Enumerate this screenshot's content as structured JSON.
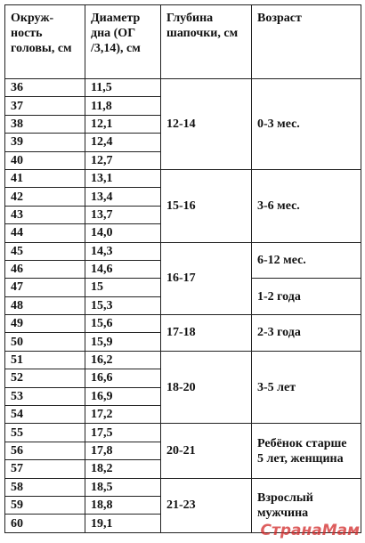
{
  "header": {
    "circumference": "Окруж-ность головы, см",
    "diameter": "Диаметр дна (ОГ /3,14), см",
    "depth": "Глубина шапочки, см",
    "age": "Возраст"
  },
  "groups": [
    {
      "depth": "12-14",
      "ages": [
        {
          "age": "0-3 мес.",
          "rows": [
            [
              "36",
              "11,5"
            ],
            [
              "37",
              "11,8"
            ],
            [
              "38",
              "12,1"
            ],
            [
              "39",
              "12,4"
            ],
            [
              "40",
              "12,7"
            ]
          ]
        }
      ]
    },
    {
      "depth": "15-16",
      "ages": [
        {
          "age": "3-6 мес.",
          "rows": [
            [
              "41",
              "13,1"
            ],
            [
              "42",
              "13,4"
            ],
            [
              "43",
              "13,7"
            ],
            [
              "44",
              "14,0"
            ]
          ]
        }
      ]
    },
    {
      "depth": "16-17",
      "ages": [
        {
          "age": "6-12 мес.",
          "rows": [
            [
              "45",
              "14,3"
            ],
            [
              "46",
              "14,6"
            ]
          ]
        },
        {
          "age": "1-2 года",
          "rows": [
            [
              "47",
              "15"
            ],
            [
              "48",
              "15,3"
            ]
          ]
        }
      ]
    },
    {
      "depth": "17-18",
      "ages": [
        {
          "age": "2-3 года",
          "rows": [
            [
              "49",
              "15,6"
            ],
            [
              "50",
              "15,9"
            ]
          ]
        }
      ]
    },
    {
      "depth": "18-20",
      "ages": [
        {
          "age": "3-5 лет",
          "rows": [
            [
              "51",
              "16,2"
            ],
            [
              "52",
              "16,6"
            ],
            [
              "53",
              "16,9"
            ],
            [
              "54",
              "17,2"
            ]
          ]
        }
      ]
    },
    {
      "depth": "20-21",
      "ages": [
        {
          "age": "Ребёнок старше 5 лет, женщина",
          "rows": [
            [
              "55",
              "17,5"
            ],
            [
              "56",
              "17,8"
            ],
            [
              "57",
              "18,2"
            ]
          ]
        }
      ]
    },
    {
      "depth": "21-23",
      "ages": [
        {
          "age": "Взрослый мужчина",
          "rows": [
            [
              "58",
              "18,5"
            ],
            [
              "59",
              "18,8"
            ],
            [
              "60",
              "19,1"
            ]
          ]
        }
      ]
    }
  ],
  "watermark": "СтранаМам"
}
